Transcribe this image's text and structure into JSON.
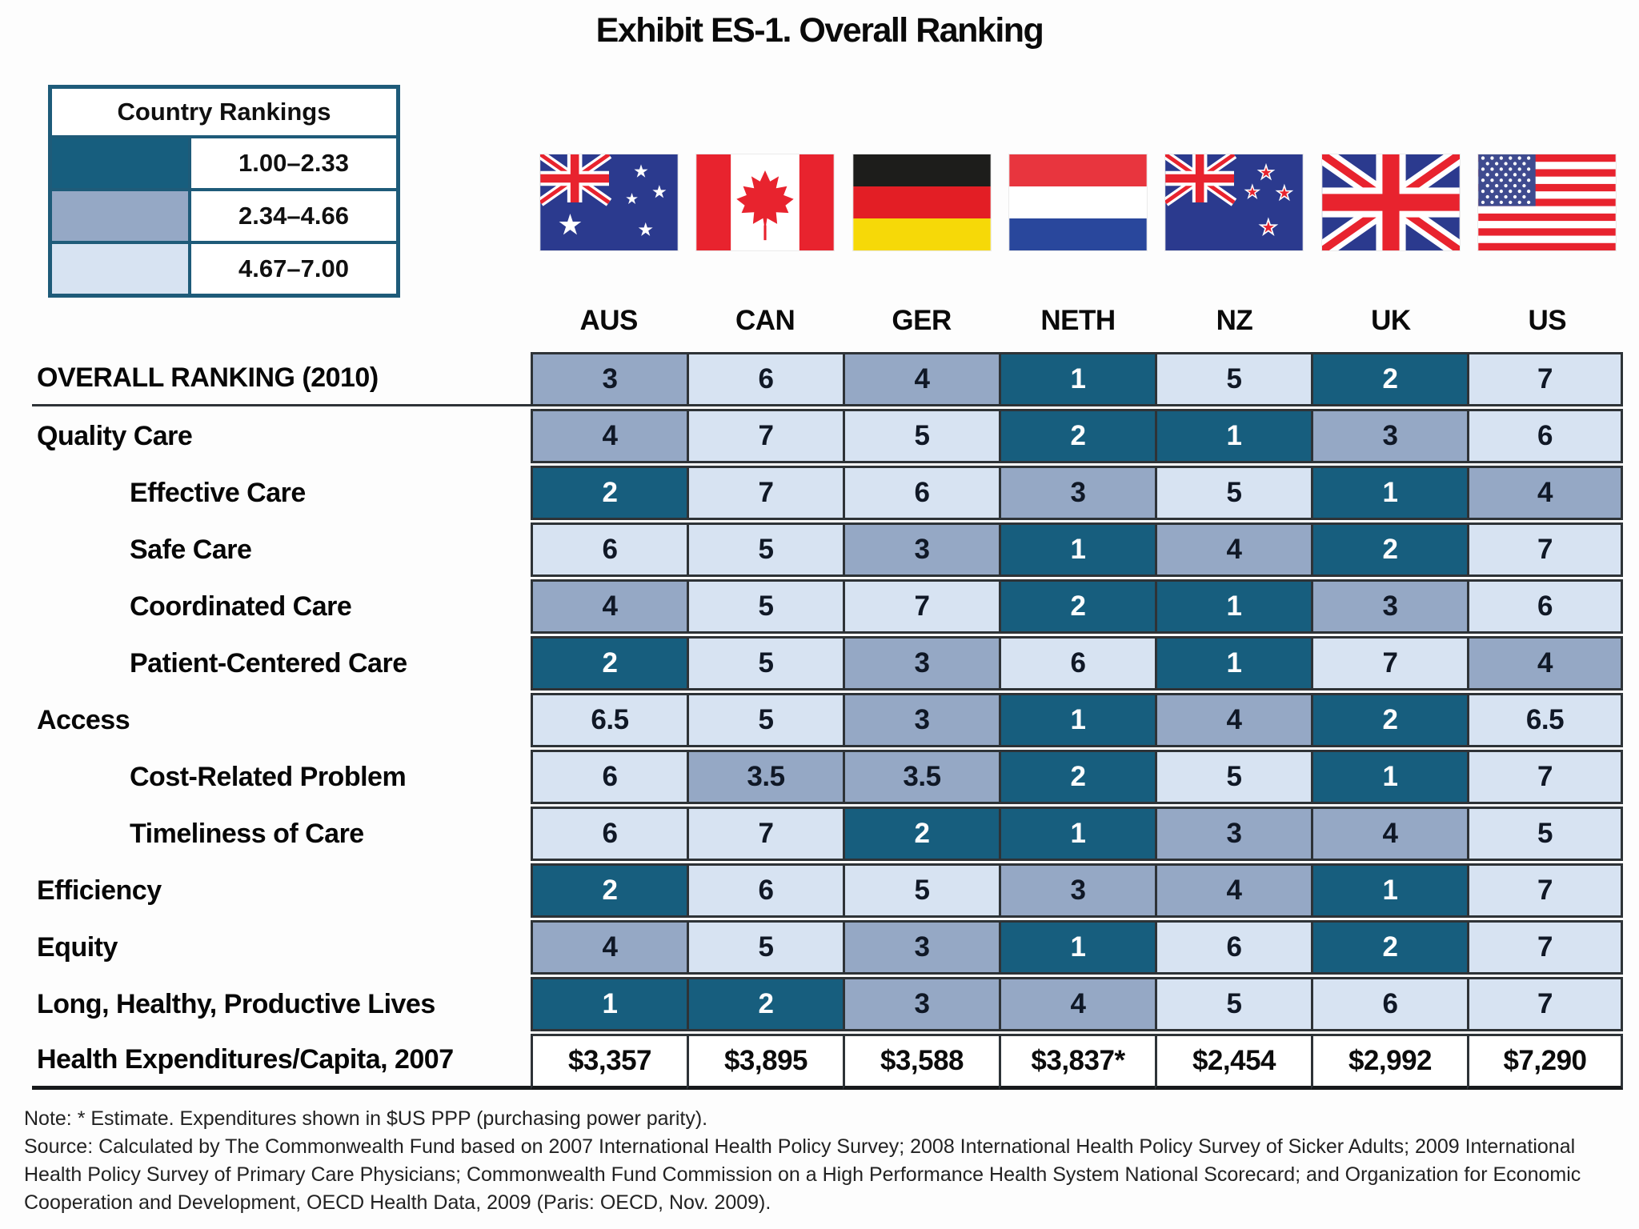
{
  "title": "Exhibit ES-1. Overall Ranking",
  "legend": {
    "header": "Country Rankings",
    "bands": [
      {
        "range": "1.00–2.33",
        "tone": "dark"
      },
      {
        "range": "2.34–4.66",
        "tone": "medium"
      },
      {
        "range": "4.67–7.00",
        "tone": "light"
      }
    ]
  },
  "colors": {
    "band_dark": "#175e7e",
    "band_medium": "#95a8c5",
    "band_light": "#d7e3f2",
    "legend_border": "#1e5b79",
    "grid_line": "#2e3337",
    "flag_red": "#e8232e",
    "flag_blue": "#2b3a8e"
  },
  "countries": [
    {
      "code": "AUS",
      "name": "australia"
    },
    {
      "code": "CAN",
      "name": "canada"
    },
    {
      "code": "GER",
      "name": "germany"
    },
    {
      "code": "NETH",
      "name": "netherlands"
    },
    {
      "code": "NZ",
      "name": "new-zealand"
    },
    {
      "code": "UK",
      "name": "uk"
    },
    {
      "code": "US",
      "name": "us"
    }
  ],
  "chart_data": {
    "type": "table",
    "title": "Exhibit ES-1. Overall Ranking",
    "categories": [
      "AUS",
      "CAN",
      "GER",
      "NETH",
      "NZ",
      "UK",
      "US"
    ],
    "color_coding": {
      "1.00–2.33": "dark teal",
      "2.34–4.66": "medium blue-gray",
      "4.67–7.00": "light blue"
    },
    "rows": [
      {
        "label": "OVERALL RANKING (2010)",
        "indent": false,
        "values": [
          "3",
          "6",
          "4",
          "1",
          "5",
          "2",
          "7"
        ]
      },
      {
        "label": "Quality Care",
        "indent": false,
        "values": [
          "4",
          "7",
          "5",
          "2",
          "1",
          "3",
          "6"
        ]
      },
      {
        "label": "Effective Care",
        "indent": true,
        "values": [
          "2",
          "7",
          "6",
          "3",
          "5",
          "1",
          "4"
        ]
      },
      {
        "label": "Safe Care",
        "indent": true,
        "values": [
          "6",
          "5",
          "3",
          "1",
          "4",
          "2",
          "7"
        ]
      },
      {
        "label": "Coordinated Care",
        "indent": true,
        "values": [
          "4",
          "5",
          "7",
          "2",
          "1",
          "3",
          "6"
        ]
      },
      {
        "label": "Patient-Centered Care",
        "indent": true,
        "values": [
          "2",
          "5",
          "3",
          "6",
          "1",
          "7",
          "4"
        ]
      },
      {
        "label": "Access",
        "indent": false,
        "values": [
          "6.5",
          "5",
          "3",
          "1",
          "4",
          "2",
          "6.5"
        ]
      },
      {
        "label": "Cost-Related Problem",
        "indent": true,
        "values": [
          "6",
          "3.5",
          "3.5",
          "2",
          "5",
          "1",
          "7"
        ]
      },
      {
        "label": "Timeliness of Care",
        "indent": true,
        "values": [
          "6",
          "7",
          "2",
          "1",
          "3",
          "4",
          "5"
        ]
      },
      {
        "label": "Efficiency",
        "indent": false,
        "values": [
          "2",
          "6",
          "5",
          "3",
          "4",
          "1",
          "7"
        ]
      },
      {
        "label": "Equity",
        "indent": false,
        "values": [
          "4",
          "5",
          "3",
          "1",
          "6",
          "2",
          "7"
        ]
      },
      {
        "label": "Long, Healthy, Productive Lives",
        "indent": false,
        "values": [
          "1",
          "2",
          "3",
          "4",
          "5",
          "6",
          "7"
        ]
      },
      {
        "label": "Health Expenditures/Capita, 2007",
        "indent": false,
        "values": [
          "$3,357",
          "$3,895",
          "$3,588",
          "$3,837*",
          "$2,454",
          "$2,992",
          "$7,290"
        ]
      }
    ]
  },
  "notes": {
    "note": "Note: * Estimate. Expenditures shown in $US PPP (purchasing power parity).",
    "source": "Source: Calculated by The Commonwealth Fund based on 2007 International Health Policy Survey; 2008 International Health Policy Survey of Sicker Adults; 2009 International Health Policy Survey of Primary Care Physicians; Commonwealth Fund Commission on a High Performance Health System National Scorecard; and Organization for Economic Cooperation and Development, OECD Health Data, 2009 (Paris: OECD, Nov. 2009)."
  }
}
